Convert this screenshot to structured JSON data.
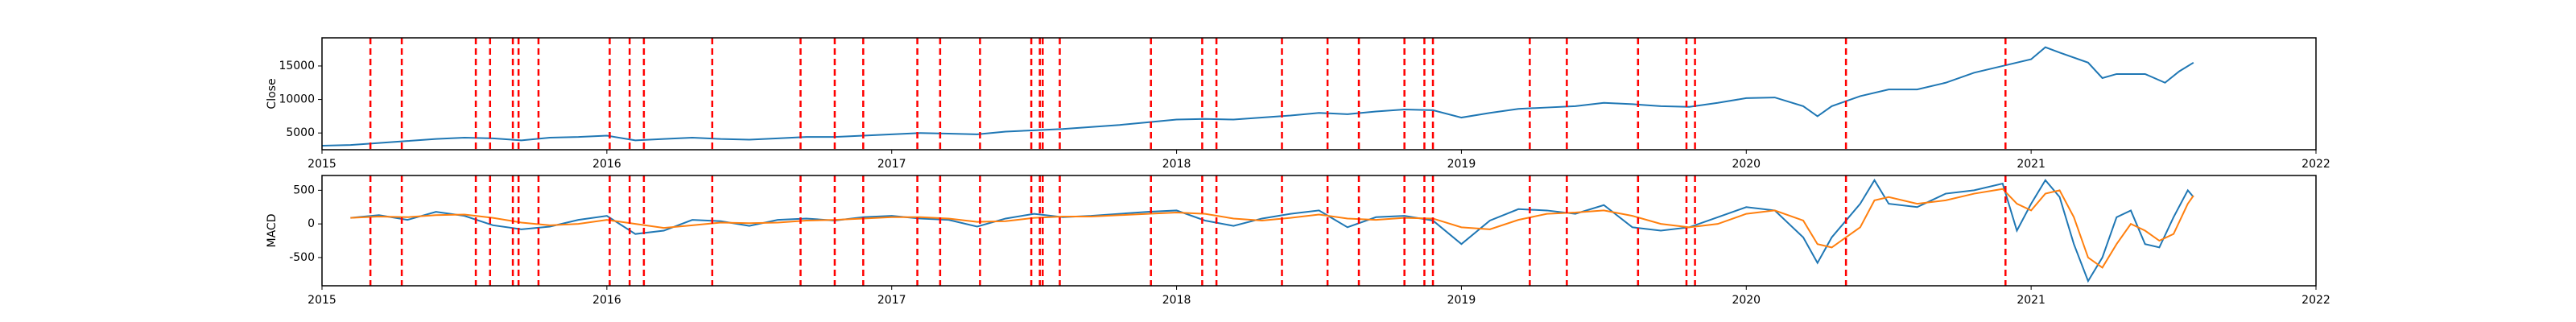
{
  "chart_data": [
    {
      "type": "line",
      "ylabel": "Close",
      "x": [
        2015.0,
        2015.1,
        2015.2,
        2015.3,
        2015.4,
        2015.5,
        2015.6,
        2015.7,
        2015.8,
        2015.9,
        2016.0,
        2016.1,
        2016.2,
        2016.3,
        2016.4,
        2016.5,
        2016.6,
        2016.7,
        2016.8,
        2016.9,
        2017.0,
        2017.1,
        2017.2,
        2017.3,
        2017.4,
        2017.5,
        2017.6,
        2017.7,
        2017.8,
        2017.9,
        2018.0,
        2018.1,
        2018.2,
        2018.3,
        2018.4,
        2018.5,
        2018.6,
        2018.7,
        2018.8,
        2018.9,
        2019.0,
        2019.1,
        2019.2,
        2019.3,
        2019.4,
        2019.5,
        2019.6,
        2019.7,
        2019.8,
        2019.9,
        2020.0,
        2020.1,
        2020.2,
        2020.25,
        2020.3,
        2020.4,
        2020.5,
        2020.6,
        2020.7,
        2020.8,
        2020.9,
        2021.0,
        2021.05,
        2021.1,
        2021.2,
        2021.25,
        2021.3,
        2021.4,
        2021.47,
        2021.52,
        2021.57
      ],
      "series": [
        {
          "color": "#1f77b4",
          "values": [
            3100,
            3200,
            3500,
            3800,
            4100,
            4300,
            4200,
            3900,
            4300,
            4400,
            4600,
            3900,
            4100,
            4300,
            4100,
            4000,
            4200,
            4400,
            4400,
            4600,
            4800,
            5000,
            4900,
            4800,
            5200,
            5400,
            5600,
            5900,
            6200,
            6600,
            7000,
            7100,
            7000,
            7300,
            7600,
            8000,
            7800,
            8200,
            8500,
            8400,
            7300,
            8000,
            8600,
            8800,
            9000,
            9500,
            9300,
            9000,
            8900,
            9500,
            10200,
            10300,
            9000,
            7500,
            9000,
            10500,
            11500,
            11500,
            12500,
            14000,
            15000,
            16000,
            17800,
            17000,
            15500,
            13200,
            13800,
            13800,
            12500,
            14200,
            15500
          ]
        }
      ],
      "events": [
        2015.17,
        2015.28,
        2015.54,
        2015.59,
        2015.67,
        2015.69,
        2015.76,
        2016.01,
        2016.08,
        2016.13,
        2016.37,
        2016.68,
        2016.8,
        2016.9,
        2017.09,
        2017.17,
        2017.31,
        2017.49,
        2017.52,
        2017.53,
        2017.59,
        2017.91,
        2018.09,
        2018.14,
        2018.37,
        2018.53,
        2018.64,
        2018.8,
        2018.87,
        2018.9,
        2019.24,
        2019.37,
        2019.62,
        2019.79,
        2019.82,
        2020.35,
        2020.91
      ],
      "event_color": "red",
      "xlim": [
        2015,
        2022
      ],
      "xticks": [
        2015,
        2016,
        2017,
        2018,
        2019,
        2020,
        2021,
        2022
      ],
      "ylim": [
        2500,
        19200
      ],
      "yticks": [
        5000,
        10000,
        15000
      ]
    },
    {
      "type": "line",
      "ylabel": "MACD",
      "x": [
        2015.1,
        2015.2,
        2015.3,
        2015.4,
        2015.5,
        2015.6,
        2015.7,
        2015.8,
        2015.9,
        2016.0,
        2016.1,
        2016.2,
        2016.3,
        2016.4,
        2016.5,
        2016.6,
        2016.7,
        2016.8,
        2016.9,
        2017.0,
        2017.1,
        2017.2,
        2017.3,
        2017.4,
        2017.5,
        2017.6,
        2017.7,
        2017.8,
        2017.9,
        2018.0,
        2018.1,
        2018.2,
        2018.3,
        2018.4,
        2018.5,
        2018.6,
        2018.7,
        2018.8,
        2018.9,
        2019.0,
        2019.1,
        2019.2,
        2019.3,
        2019.4,
        2019.5,
        2019.6,
        2019.7,
        2019.8,
        2019.9,
        2020.0,
        2020.1,
        2020.2,
        2020.25,
        2020.3,
        2020.4,
        2020.45,
        2020.5,
        2020.6,
        2020.7,
        2020.8,
        2020.9,
        2020.95,
        2021.0,
        2021.05,
        2021.1,
        2021.15,
        2021.2,
        2021.25,
        2021.3,
        2021.35,
        2021.4,
        2021.45,
        2021.5,
        2021.55,
        2021.57
      ],
      "series": [
        {
          "color": "#1f77b4",
          "values": [
            90,
            130,
            60,
            180,
            120,
            -20,
            -80,
            -40,
            60,
            120,
            -150,
            -100,
            60,
            40,
            -30,
            60,
            80,
            50,
            100,
            120,
            80,
            60,
            -40,
            80,
            150,
            100,
            120,
            150,
            180,
            200,
            50,
            -30,
            80,
            150,
            200,
            -50,
            100,
            120,
            50,
            -300,
            50,
            220,
            200,
            150,
            280,
            -50,
            -100,
            -50,
            100,
            250,
            200,
            -200,
            -580,
            -200,
            300,
            650,
            300,
            250,
            450,
            500,
            600,
            -100,
            300,
            650,
            400,
            -300,
            -850,
            -500,
            100,
            200,
            -300,
            -350,
            100,
            500,
            400
          ]
        },
        {
          "color": "#ff7f0e",
          "values": [
            90,
            110,
            100,
            130,
            140,
            90,
            20,
            -20,
            0,
            60,
            0,
            -60,
            -20,
            20,
            10,
            20,
            50,
            60,
            80,
            100,
            100,
            80,
            30,
            40,
            90,
            110,
            110,
            130,
            150,
            170,
            150,
            80,
            50,
            90,
            140,
            80,
            60,
            90,
            80,
            -50,
            -80,
            60,
            150,
            170,
            200,
            120,
            0,
            -50,
            0,
            150,
            200,
            50,
            -300,
            -350,
            -50,
            350,
            400,
            300,
            350,
            450,
            520,
            300,
            200,
            450,
            500,
            100,
            -500,
            -650,
            -300,
            0,
            -100,
            -250,
            -150,
            300,
            420
          ]
        }
      ],
      "events": [
        2015.17,
        2015.28,
        2015.54,
        2015.59,
        2015.67,
        2015.69,
        2015.76,
        2016.01,
        2016.08,
        2016.13,
        2016.37,
        2016.68,
        2016.8,
        2016.9,
        2017.09,
        2017.17,
        2017.31,
        2017.49,
        2017.52,
        2017.53,
        2017.59,
        2017.91,
        2018.09,
        2018.14,
        2018.37,
        2018.53,
        2018.64,
        2018.8,
        2018.87,
        2018.9,
        2019.24,
        2019.37,
        2019.62,
        2019.79,
        2019.82,
        2020.35,
        2020.91
      ],
      "event_color": "red",
      "xlim": [
        2015,
        2022
      ],
      "xticks": [
        2015,
        2016,
        2017,
        2018,
        2019,
        2020,
        2021,
        2022
      ],
      "ylim": [
        -920,
        720
      ],
      "yticks": [
        -500,
        0,
        500
      ]
    }
  ]
}
